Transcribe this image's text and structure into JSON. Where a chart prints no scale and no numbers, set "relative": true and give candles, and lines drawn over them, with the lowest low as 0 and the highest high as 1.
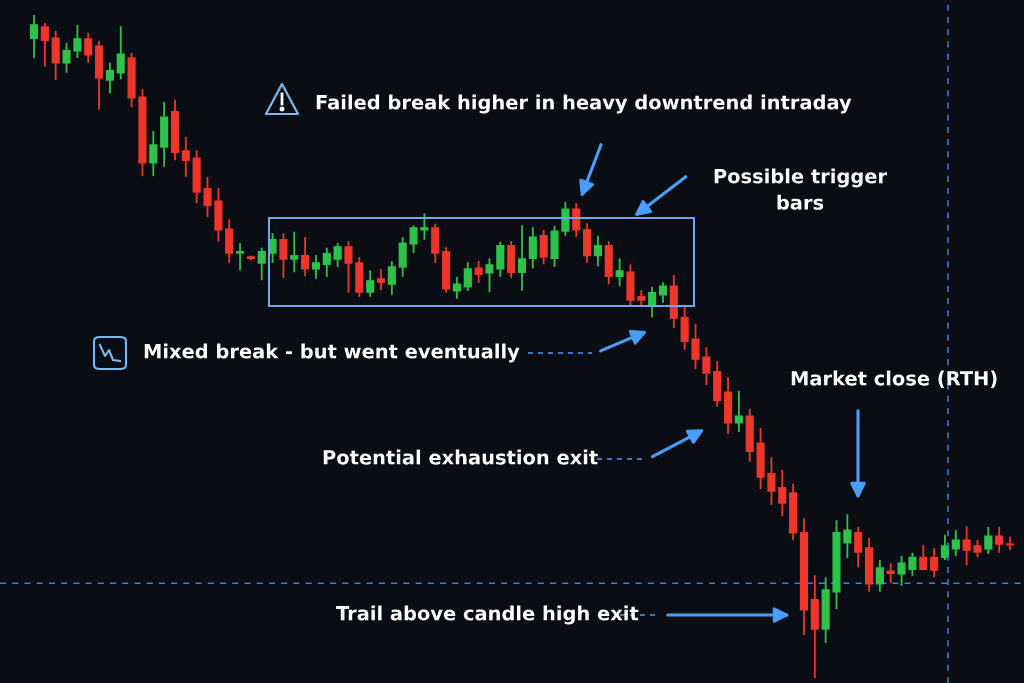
{
  "chart_data": {
    "type": "candlestick",
    "relative": true,
    "categories": [
      null,
      null,
      null,
      null,
      null,
      null,
      null,
      null,
      null,
      null,
      null,
      null,
      null,
      null,
      null,
      null,
      null,
      null,
      null,
      null,
      null,
      null,
      null,
      null,
      null,
      null,
      null,
      null,
      null,
      null,
      null,
      null,
      null,
      null,
      null,
      null,
      null,
      null,
      null,
      null,
      null,
      null,
      null,
      null,
      null,
      null,
      null,
      null,
      null,
      null,
      null,
      null,
      null,
      null,
      null,
      null,
      null,
      null,
      null,
      null,
      null,
      null,
      null,
      null,
      null,
      null,
      null,
      null,
      null,
      null,
      null,
      null,
      null,
      null,
      null,
      null,
      null,
      null,
      null,
      null,
      null,
      null,
      null,
      null,
      null,
      null,
      null,
      null,
      null,
      null,
      null
    ],
    "ohlc": [
      [
        0.965,
        1.0,
        0.935,
        0.985
      ],
      [
        0.982,
        0.988,
        0.922,
        0.962
      ],
      [
        0.965,
        0.976,
        0.902,
        0.928
      ],
      [
        0.928,
        0.958,
        0.913,
        0.946
      ],
      [
        0.946,
        0.985,
        0.935,
        0.964
      ],
      [
        0.964,
        0.973,
        0.928,
        0.94
      ],
      [
        0.953,
        0.961,
        0.857,
        0.905
      ],
      [
        0.902,
        0.928,
        0.882,
        0.916
      ],
      [
        0.913,
        0.983,
        0.903,
        0.941
      ],
      [
        0.935,
        0.943,
        0.861,
        0.875
      ],
      [
        0.876,
        0.888,
        0.757,
        0.777
      ],
      [
        0.777,
        0.825,
        0.757,
        0.804
      ],
      [
        0.801,
        0.869,
        0.771,
        0.846
      ],
      [
        0.854,
        0.872,
        0.781,
        0.793
      ],
      [
        0.795,
        0.816,
        0.756,
        0.781
      ],
      [
        0.784,
        0.796,
        0.716,
        0.733
      ],
      [
        0.738,
        0.756,
        0.695,
        0.713
      ],
      [
        0.719,
        0.739,
        0.658,
        0.676
      ],
      [
        0.677,
        0.692,
        0.626,
        0.641
      ],
      [
        0.641,
        0.656,
        0.615,
        0.643
      ],
      [
        0.635,
        0.637,
        0.63,
        0.633
      ],
      [
        0.626,
        0.649,
        0.6,
        0.643
      ],
      [
        0.641,
        0.671,
        0.626,
        0.661
      ],
      [
        0.661,
        0.671,
        0.603,
        0.632
      ],
      [
        0.632,
        0.673,
        0.612,
        0.637
      ],
      [
        0.637,
        0.665,
        0.606,
        0.617
      ],
      [
        0.617,
        0.638,
        0.602,
        0.626
      ],
      [
        0.624,
        0.649,
        0.605,
        0.64
      ],
      [
        0.632,
        0.656,
        0.62,
        0.65
      ],
      [
        0.65,
        0.659,
        0.581,
        0.626
      ],
      [
        0.626,
        0.635,
        0.575,
        0.582
      ],
      [
        0.582,
        0.615,
        0.575,
        0.599
      ],
      [
        0.602,
        0.617,
        0.585,
        0.597
      ],
      [
        0.594,
        0.629,
        0.578,
        0.62
      ],
      [
        0.62,
        0.665,
        0.605,
        0.656
      ],
      [
        0.655,
        0.683,
        0.641,
        0.679
      ],
      [
        0.676,
        0.701,
        0.661,
        0.679
      ],
      [
        0.679,
        0.685,
        0.626,
        0.641
      ],
      [
        0.643,
        0.65,
        0.581,
        0.587
      ],
      [
        0.584,
        0.605,
        0.572,
        0.594
      ],
      [
        0.59,
        0.627,
        0.584,
        0.617
      ],
      [
        0.618,
        0.629,
        0.596,
        0.609
      ],
      [
        0.611,
        0.633,
        0.582,
        0.623
      ],
      [
        0.617,
        0.658,
        0.605,
        0.652
      ],
      [
        0.652,
        0.659,
        0.603,
        0.612
      ],
      [
        0.612,
        0.683,
        0.584,
        0.632
      ],
      [
        0.633,
        0.68,
        0.618,
        0.665
      ],
      [
        0.667,
        0.676,
        0.624,
        0.635
      ],
      [
        0.633,
        0.682,
        0.62,
        0.674
      ],
      [
        0.674,
        0.718,
        0.667,
        0.707
      ],
      [
        0.707,
        0.716,
        0.665,
        0.676
      ],
      [
        0.676,
        0.686,
        0.626,
        0.637
      ],
      [
        0.637,
        0.667,
        0.621,
        0.652
      ],
      [
        0.652,
        0.659,
        0.594,
        0.606
      ],
      [
        0.606,
        0.633,
        0.591,
        0.614
      ],
      [
        0.612,
        0.624,
        0.56,
        0.57
      ],
      [
        0.575,
        0.585,
        0.56,
        0.57
      ],
      [
        0.561,
        0.59,
        0.544,
        0.581
      ],
      [
        0.578,
        0.597,
        0.566,
        0.591
      ],
      [
        0.591,
        0.608,
        0.528,
        0.543
      ],
      [
        0.544,
        0.563,
        0.495,
        0.508
      ],
      [
        0.511,
        0.534,
        0.466,
        0.481
      ],
      [
        0.484,
        0.499,
        0.442,
        0.46
      ],
      [
        0.462,
        0.478,
        0.409,
        0.419
      ],
      [
        0.431,
        0.454,
        0.368,
        0.385
      ],
      [
        0.385,
        0.433,
        0.371,
        0.395
      ],
      [
        0.395,
        0.406,
        0.326,
        0.342
      ],
      [
        0.354,
        0.377,
        0.285,
        0.303
      ],
      [
        0.308,
        0.333,
        0.261,
        0.282
      ],
      [
        0.287,
        0.314,
        0.244,
        0.264
      ],
      [
        0.279,
        0.293,
        0.208,
        0.219
      ],
      [
        0.219,
        0.241,
        0.065,
        0.103
      ],
      [
        0.118,
        0.155,
        0,
        0.074
      ],
      [
        0.074,
        0.152,
        0.053,
        0.133
      ],
      [
        0.13,
        0.238,
        0.104,
        0.219
      ],
      [
        0.204,
        0.247,
        0.181,
        0.223
      ],
      [
        0.219,
        0.228,
        0.167,
        0.19
      ],
      [
        0.196,
        0.211,
        0.13,
        0.142
      ],
      [
        0.142,
        0.178,
        0.13,
        0.166
      ],
      [
        0.161,
        0.173,
        0.143,
        0.158
      ],
      [
        0.157,
        0.184,
        0.139,
        0.173
      ],
      [
        0.164,
        0.189,
        0.154,
        0.182
      ],
      [
        0.182,
        0.201,
        0.164,
        0.164
      ],
      [
        0.182,
        0.196,
        0.152,
        0.163
      ],
      [
        0.182,
        0.216,
        0.178,
        0.199
      ],
      [
        0.195,
        0.223,
        0.184,
        0.208
      ],
      [
        0.208,
        0.229,
        0.17,
        0.193
      ],
      [
        0.199,
        0.208,
        0.182,
        0.19
      ],
      [
        0.195,
        0.228,
        0.187,
        0.214
      ],
      [
        0.214,
        0.228,
        0.189,
        0.202
      ],
      [
        0.202,
        0.213,
        0.193,
        0.201
      ]
    ],
    "ref_lines": [
      {
        "axis": "y",
        "value": 0.143,
        "label": null,
        "color": "#3b7dd8",
        "line_style": "dashed"
      }
    ],
    "annotations": [
      "Failed break higher in heavy downtrend intraday",
      "Possible trigger\nbars",
      "Mixed break - but went eventually",
      "Potential exhaustion exit",
      "Market close (RTH)",
      "Trail above candle high exit"
    ],
    "legend": false
  }
}
